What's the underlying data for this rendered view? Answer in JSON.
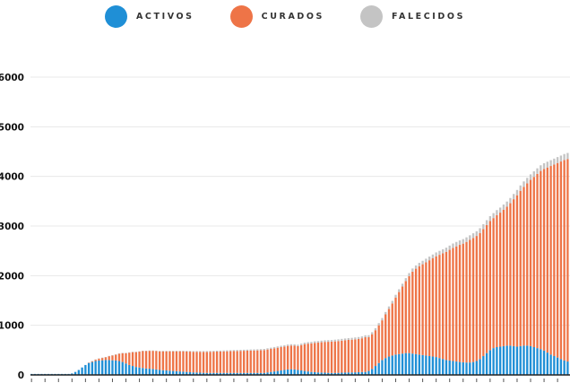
{
  "chart_data": {
    "type": "bar",
    "stacked": true,
    "legend_position": "top-center",
    "grid": true,
    "title": "",
    "xlabel": "",
    "ylabel": "",
    "ylim": [
      0,
      6000
    ],
    "yticks": [
      0,
      1000,
      2000,
      3000,
      4000,
      5000,
      6000
    ],
    "ytick_labels": [
      "0",
      "1000",
      "2000",
      "3000",
      "4000",
      "5000",
      "6000"
    ],
    "colors": {
      "activos": "#1f8fd6",
      "curados": "#ee7447",
      "falecidos": "#c4c4c4"
    },
    "series": [
      {
        "name": "ACTIVOS",
        "values": [
          20,
          20,
          20,
          20,
          20,
          20,
          20,
          20,
          20,
          20,
          20,
          20,
          30,
          60,
          100,
          150,
          200,
          240,
          260,
          280,
          290,
          295,
          300,
          300,
          295,
          290,
          280,
          260,
          230,
          200,
          180,
          160,
          150,
          140,
          130,
          125,
          120,
          110,
          100,
          95,
          90,
          85,
          80,
          75,
          70,
          65,
          60,
          55,
          50,
          48,
          45,
          42,
          40,
          40,
          40,
          40,
          40,
          40,
          40,
          40,
          40,
          40,
          40,
          40,
          40,
          40,
          40,
          40,
          40,
          40,
          50,
          60,
          70,
          80,
          90,
          100,
          110,
          115,
          110,
          100,
          90,
          80,
          70,
          60,
          55,
          50,
          48,
          45,
          42,
          40,
          40,
          42,
          45,
          48,
          50,
          50,
          52,
          55,
          58,
          60,
          80,
          120,
          180,
          240,
          300,
          340,
          370,
          390,
          410,
          420,
          430,
          440,
          440,
          430,
          420,
          410,
          400,
          390,
          380,
          370,
          360,
          340,
          320,
          300,
          290,
          280,
          270,
          260,
          255,
          250,
          250,
          260,
          280,
          320,
          380,
          440,
          500,
          540,
          560,
          570,
          580,
          590,
          590,
          580,
          570,
          580,
          590,
          590,
          580,
          560,
          540,
          520,
          490,
          450,
          410,
          380,
          350,
          320,
          290,
          270
        ]
      },
      {
        "name": "CURADOS",
        "values": [
          0,
          0,
          0,
          0,
          0,
          0,
          0,
          0,
          0,
          0,
          0,
          0,
          0,
          0,
          0,
          0,
          0,
          10,
          20,
          30,
          40,
          50,
          60,
          80,
          100,
          120,
          150,
          180,
          210,
          250,
          280,
          300,
          320,
          340,
          350,
          360,
          365,
          370,
          375,
          380,
          385,
          390,
          395,
          400,
          405,
          410,
          412,
          414,
          416,
          418,
          420,
          422,
          424,
          426,
          428,
          430,
          432,
          434,
          436,
          438,
          440,
          442,
          444,
          446,
          448,
          450,
          452,
          454,
          456,
          460,
          462,
          464,
          466,
          468,
          470,
          472,
          474,
          476,
          478,
          480,
          510,
          540,
          560,
          575,
          590,
          600,
          610,
          620,
          625,
          630,
          635,
          640,
          645,
          650,
          655,
          660,
          665,
          670,
          680,
          700,
          680,
          700,
          720,
          760,
          800,
          880,
          960,
          1050,
          1150,
          1250,
          1350,
          1450,
          1550,
          1650,
          1720,
          1780,
          1830,
          1880,
          1930,
          1980,
          2030,
          2080,
          2130,
          2180,
          2230,
          2280,
          2320,
          2360,
          2390,
          2430,
          2470,
          2500,
          2520,
          2540,
          2560,
          2580,
          2600,
          2620,
          2660,
          2700,
          2750,
          2800,
          2870,
          2960,
          3050,
          3130,
          3200,
          3270,
          3350,
          3430,
          3510,
          3590,
          3660,
          3730,
          3800,
          3860,
          3920,
          3980,
          4040,
          4080
        ]
      },
      {
        "name": "FALECIDOS",
        "values": [
          0,
          0,
          0,
          0,
          0,
          0,
          0,
          0,
          0,
          0,
          0,
          0,
          0,
          0,
          0,
          0,
          0,
          1,
          1,
          1,
          2,
          2,
          2,
          3,
          3,
          4,
          4,
          5,
          5,
          6,
          6,
          7,
          7,
          8,
          8,
          9,
          9,
          10,
          10,
          11,
          11,
          12,
          12,
          13,
          13,
          14,
          14,
          15,
          15,
          16,
          16,
          17,
          17,
          18,
          18,
          19,
          19,
          20,
          20,
          20,
          21,
          21,
          22,
          22,
          22,
          23,
          23,
          23,
          24,
          24,
          25,
          25,
          26,
          26,
          27,
          27,
          28,
          28,
          29,
          29,
          30,
          30,
          31,
          31,
          32,
          32,
          33,
          33,
          34,
          34,
          35,
          35,
          36,
          36,
          37,
          37,
          38,
          38,
          39,
          39,
          40,
          40,
          42,
          44,
          46,
          48,
          50,
          52,
          54,
          56,
          58,
          60,
          62,
          64,
          66,
          68,
          70,
          72,
          74,
          76,
          78,
          80,
          82,
          84,
          86,
          88,
          89,
          90,
          91,
          92,
          93,
          94,
          95,
          96,
          97,
          98,
          99,
          100,
          101,
          102,
          103,
          104,
          105,
          106,
          107,
          108,
          109,
          110,
          111,
          112,
          113,
          114,
          115,
          116,
          117,
          118,
          119,
          120,
          121,
          122
        ]
      }
    ]
  }
}
